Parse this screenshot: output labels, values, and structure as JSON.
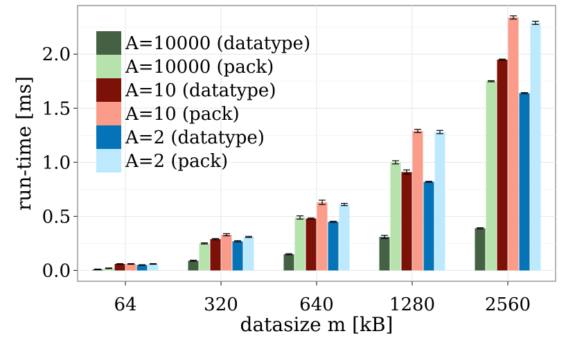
{
  "chart_data": {
    "type": "bar",
    "title": "",
    "xlabel": "datasize m [kB]",
    "ylabel": "run-time [ms]",
    "ylim": [
      -0.1,
      2.45
    ],
    "yticks": [
      0.0,
      0.5,
      1.0,
      1.5,
      2.0
    ],
    "ytick_labels": [
      "0.0",
      "0.5",
      "1.0",
      "1.5",
      "2.0"
    ],
    "grid": true,
    "legend_position": "top-left",
    "categories": [
      "64",
      "320",
      "640",
      "1280",
      "2560"
    ],
    "series": [
      {
        "name": "A=10000 (datatype)",
        "color": "#446144",
        "values": [
          0.01,
          0.09,
          0.15,
          0.31,
          0.39
        ],
        "errors": [
          0.003,
          0.005,
          0.005,
          0.015,
          0.005
        ]
      },
      {
        "name": "A=10000 (pack)",
        "color": "#b5e3ab",
        "values": [
          0.02,
          0.25,
          0.49,
          1.0,
          1.75
        ],
        "errors": [
          0.003,
          0.005,
          0.015,
          0.015,
          0.005
        ]
      },
      {
        "name": "A=10 (datatype)",
        "color": "#7b1107",
        "values": [
          0.06,
          0.29,
          0.48,
          0.91,
          1.95
        ],
        "errors": [
          0.003,
          0.005,
          0.005,
          0.02,
          0.005
        ]
      },
      {
        "name": "A=10 (pack)",
        "color": "#fb9c8a",
        "values": [
          0.06,
          0.33,
          0.63,
          1.29,
          2.34
        ],
        "errors": [
          0.003,
          0.01,
          0.02,
          0.015,
          0.015
        ]
      },
      {
        "name": "A=2 (datatype)",
        "color": "#0473b8",
        "values": [
          0.05,
          0.27,
          0.45,
          0.82,
          1.64
        ],
        "errors": [
          0.003,
          0.005,
          0.005,
          0.005,
          0.005
        ]
      },
      {
        "name": "A=2 (pack)",
        "color": "#bde9fe",
        "values": [
          0.06,
          0.31,
          0.61,
          1.28,
          2.29
        ],
        "errors": [
          0.003,
          0.005,
          0.01,
          0.015,
          0.015
        ]
      }
    ]
  }
}
